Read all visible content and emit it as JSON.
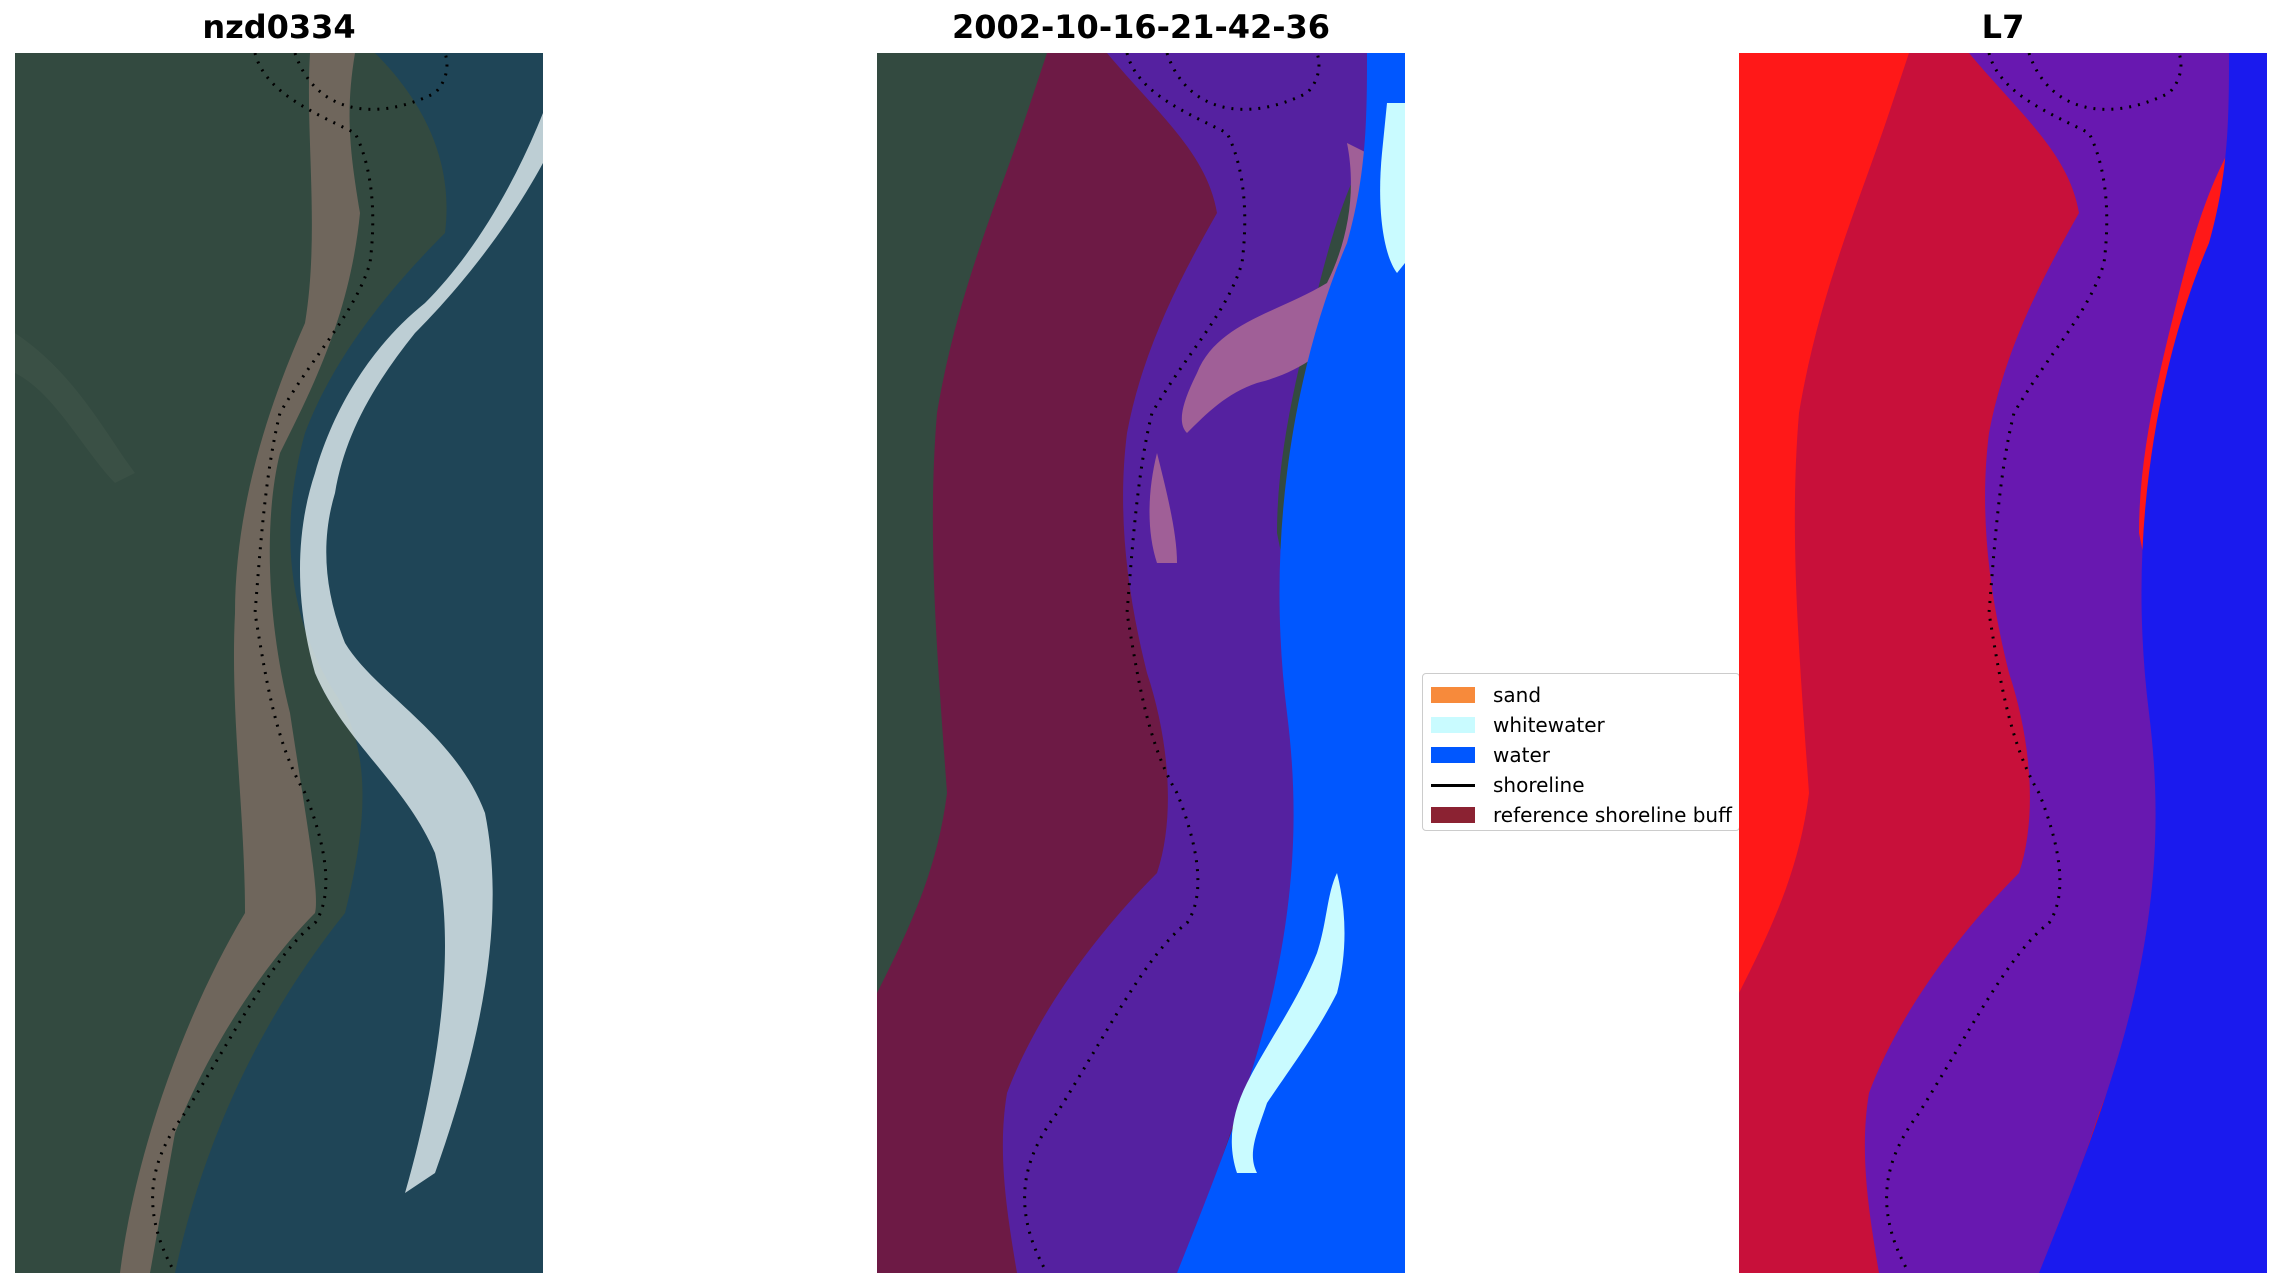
{
  "panels": {
    "rgb": {
      "title": "nzd0334"
    },
    "classified": {
      "title": "2002-10-16-21-42-36"
    },
    "index": {
      "title": "L7"
    }
  },
  "legend": {
    "items": [
      {
        "label": "sand",
        "color": "#f78a3b",
        "kind": "patch"
      },
      {
        "label": "whitewater",
        "color": "#c9fbff",
        "kind": "patch"
      },
      {
        "label": "water",
        "color": "#0057ff",
        "kind": "patch"
      },
      {
        "label": "shoreline",
        "color": "#000000",
        "kind": "line"
      },
      {
        "label": "reference shoreline buff",
        "color": "#8b2232",
        "kind": "patch"
      }
    ]
  },
  "colors": {
    "land": "#334a40",
    "ocean": "#1f4557",
    "beach": "#8e7a6c",
    "buffer": "#6d1a45",
    "classified_water": "#5521a0",
    "index_land": "#ff1818",
    "index_buffer": "#c8103a",
    "index_water_buffer": "#6818b0",
    "index_water": "#1a1aee"
  }
}
